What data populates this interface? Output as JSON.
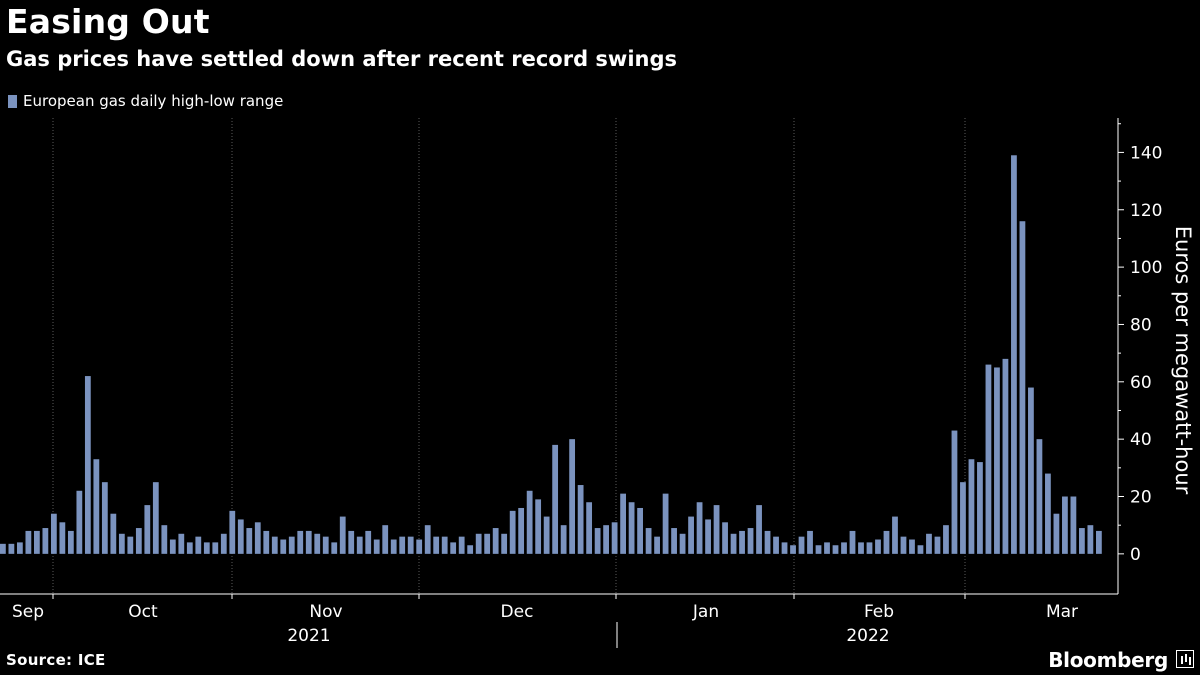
{
  "title": "Easing Out",
  "subtitle": "Gas prices have settled down after recent record swings",
  "source": "Source: ICE",
  "brand": "Bloomberg",
  "colors": {
    "bar": "#7b93bf",
    "background": "#000000",
    "grid": "#5a5a5a",
    "text": "#ffffff"
  },
  "chart_data": {
    "type": "bar",
    "legend": "European gas daily high-low range",
    "legend_position": "top-left",
    "ylabel": "Euros per megawatt-hour",
    "ylim": [
      -14,
      152
    ],
    "yticks": [
      0,
      20,
      40,
      60,
      80,
      100,
      120,
      140
    ],
    "grid": "vertical month dividers",
    "month_labels": [
      "Sep",
      "Oct",
      "Nov",
      "Dec",
      "Jan",
      "Feb",
      "Mar"
    ],
    "year_labels": [
      "2021",
      "2022"
    ],
    "series": [
      {
        "name": "European gas daily high-low range",
        "values": [
          3.5,
          3.5,
          4,
          8,
          8,
          9,
          14,
          11,
          8,
          22,
          62,
          33,
          25,
          14,
          7,
          6,
          9,
          17,
          25,
          10,
          5,
          7,
          4,
          6,
          4,
          4,
          7,
          15,
          12,
          9,
          11,
          8,
          6,
          5,
          6,
          8,
          8,
          7,
          6,
          4,
          13,
          8,
          6,
          8,
          5,
          10,
          5,
          6,
          6,
          5,
          10,
          6,
          6,
          4,
          6,
          3,
          7,
          7,
          9,
          7,
          15,
          16,
          22,
          19,
          13,
          38,
          10,
          40,
          24,
          18,
          9,
          10,
          11,
          21,
          18,
          16,
          9,
          6,
          21,
          9,
          7,
          13,
          18,
          12,
          17,
          11,
          7,
          8,
          9,
          17,
          8,
          6,
          4,
          3,
          6,
          8,
          3,
          4,
          3,
          4,
          8,
          4,
          4,
          5,
          8,
          13,
          6,
          5,
          3,
          7,
          6,
          10,
          43,
          25,
          33,
          32,
          66,
          65,
          68,
          139,
          116,
          58,
          40,
          28,
          14,
          20,
          20,
          9,
          10,
          8
        ]
      }
    ]
  }
}
